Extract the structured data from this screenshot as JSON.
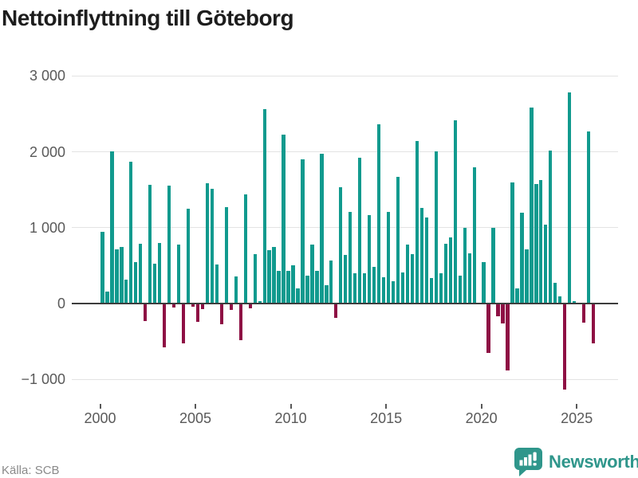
{
  "title": "Nettoinflyttning till Göteborg",
  "source": "Källa: SCB",
  "logo": {
    "text": "Newsworthy"
  },
  "colors": {
    "positive": "#119a8e",
    "negative": "#8e1044",
    "title_text": "#1d1d1d",
    "axis_text": "#595959",
    "grid": "#e3e3e3",
    "zero_line": "#3d3d3d",
    "source_text": "#8a8a8a",
    "logo_teal": "#2f968b",
    "background": "#ffffff"
  },
  "chart_data": {
    "type": "bar",
    "title": "Nettoinflyttning till Göteborg",
    "xlabel": "",
    "ylabel": "",
    "frequency": "quarterly",
    "grid": true,
    "legend": "none",
    "ylim": [
      -1200,
      3000
    ],
    "y_ticks": [
      {
        "value": 3000,
        "label": "3 000"
      },
      {
        "value": 2000,
        "label": "2 000"
      },
      {
        "value": 1000,
        "label": "1 000"
      },
      {
        "value": 0,
        "label": "0"
      },
      {
        "value": -1000,
        "label": "−1 000"
      }
    ],
    "x_tick_years": [
      "2000",
      "2005",
      "2010",
      "2015",
      "2020",
      "2025"
    ],
    "quarters": [
      "2000-Q1",
      "2000-Q2",
      "2000-Q3",
      "2000-Q4",
      "2001-Q1",
      "2001-Q2",
      "2001-Q3",
      "2001-Q4",
      "2002-Q1",
      "2002-Q2",
      "2002-Q3",
      "2002-Q4",
      "2003-Q1",
      "2003-Q2",
      "2003-Q3",
      "2003-Q4",
      "2004-Q1",
      "2004-Q2",
      "2004-Q3",
      "2004-Q4",
      "2005-Q1",
      "2005-Q2",
      "2005-Q3",
      "2005-Q4",
      "2006-Q1",
      "2006-Q2",
      "2006-Q3",
      "2006-Q4",
      "2007-Q1",
      "2007-Q2",
      "2007-Q3",
      "2007-Q4",
      "2008-Q1",
      "2008-Q2",
      "2008-Q3",
      "2008-Q4",
      "2009-Q1",
      "2009-Q2",
      "2009-Q3",
      "2009-Q4",
      "2010-Q1",
      "2010-Q2",
      "2010-Q3",
      "2010-Q4",
      "2011-Q1",
      "2011-Q2",
      "2011-Q3",
      "2011-Q4",
      "2012-Q1",
      "2012-Q2",
      "2012-Q3",
      "2012-Q4",
      "2013-Q1",
      "2013-Q2",
      "2013-Q3",
      "2013-Q4",
      "2014-Q1",
      "2014-Q2",
      "2014-Q3",
      "2014-Q4",
      "2015-Q1",
      "2015-Q2",
      "2015-Q3",
      "2015-Q4",
      "2016-Q1",
      "2016-Q2",
      "2016-Q3",
      "2016-Q4",
      "2017-Q1",
      "2017-Q2",
      "2017-Q3",
      "2017-Q4",
      "2018-Q1",
      "2018-Q2",
      "2018-Q3",
      "2018-Q4",
      "2019-Q1",
      "2019-Q2",
      "2019-Q3",
      "2019-Q4",
      "2020-Q1",
      "2020-Q2",
      "2020-Q3",
      "2020-Q4",
      "2021-Q1",
      "2021-Q2",
      "2021-Q3",
      "2021-Q4",
      "2022-Q1",
      "2022-Q2",
      "2022-Q3",
      "2022-Q4",
      "2023-Q1",
      "2023-Q2",
      "2023-Q3",
      "2023-Q4",
      "2024-Q1",
      "2024-Q2",
      "2024-Q3",
      "2024-Q4",
      "2025-Q1",
      "2025-Q2",
      "2025-Q3",
      "2025-Q4"
    ],
    "values": [
      950,
      160,
      2010,
      710,
      750,
      320,
      1875,
      545,
      785,
      -230,
      1570,
      525,
      795,
      -575,
      1550,
      -50,
      775,
      -530,
      1250,
      -45,
      -240,
      -70,
      1590,
      1510,
      510,
      -270,
      1270,
      -80,
      360,
      -480,
      1440,
      -60,
      650,
      35,
      2560,
      700,
      750,
      430,
      2230,
      430,
      500,
      200,
      1900,
      370,
      780,
      430,
      1980,
      240,
      570,
      -190,
      1530,
      645,
      1210,
      400,
      1920,
      400,
      1170,
      480,
      2360,
      350,
      1210,
      290,
      1670,
      410,
      780,
      650,
      2140,
      1265,
      1140,
      340,
      2010,
      400,
      790,
      870,
      2415,
      365,
      995,
      665,
      1800,
      0,
      550,
      -650,
      995,
      -165,
      -260,
      -880,
      1600,
      195,
      1195,
      710,
      2590,
      1580,
      1630,
      1040,
      2020,
      270,
      90,
      -1130,
      2780,
      35,
      0,
      -250,
      2265,
      -530
    ]
  }
}
